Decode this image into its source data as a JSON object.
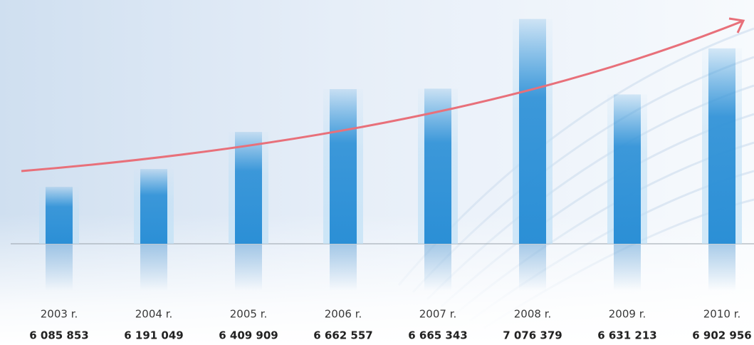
{
  "chart_data": {
    "type": "bar",
    "categories": [
      "2003 r.",
      "2004 r.",
      "2005 r.",
      "2006 r.",
      "2007 r.",
      "2008 r.",
      "2009 r.",
      "2010 r."
    ],
    "values": [
      6085853,
      6191049,
      6409909,
      6662557,
      6665343,
      7076379,
      6631213,
      6902956
    ],
    "value_labels": [
      "6 085 853",
      "6 191 049",
      "6 409 909",
      "6 662 557",
      "6 665 343",
      "7 076 379",
      "6 631 213",
      "6 902 956"
    ],
    "color": "#2b8fd6",
    "ylim": [
      5750000,
      7100000
    ]
  }
}
